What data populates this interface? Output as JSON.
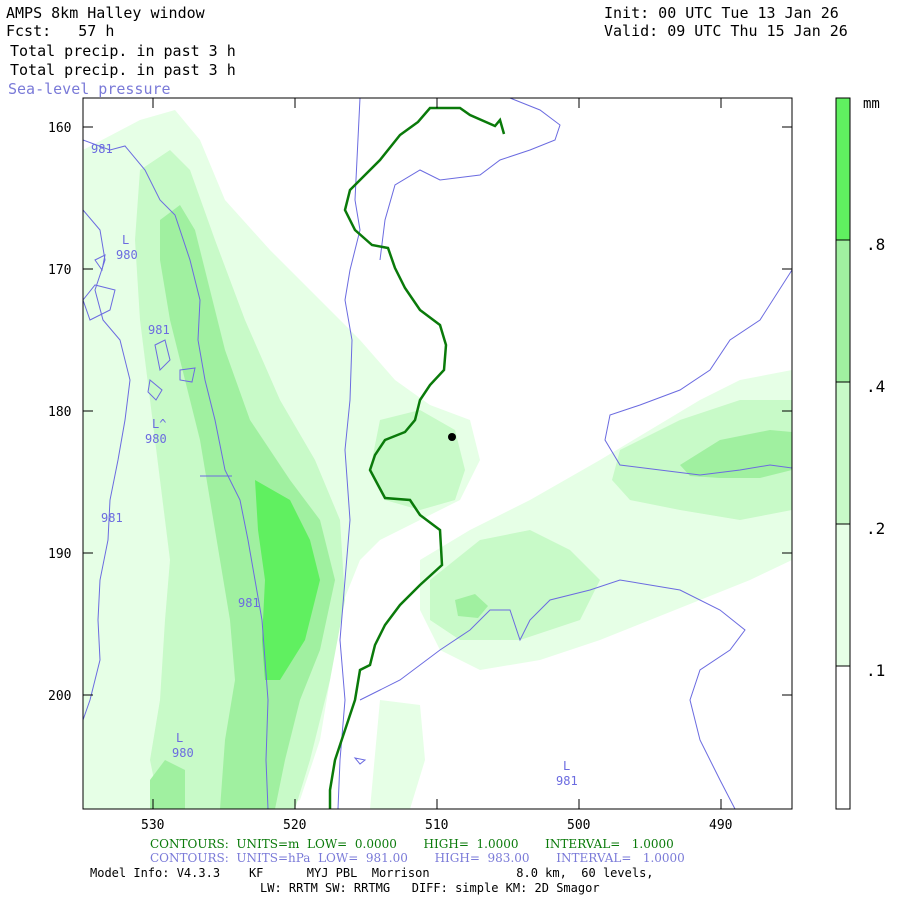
{
  "header": {
    "title": "AMPS 8km Halley window",
    "fcst": "Fcst:   57 h",
    "init": "Init: 00 UTC Tue 13 Jan 26",
    "valid": "Valid: 09 UTC Thu 15 Jan 26",
    "field1": "Total precip. in past 3 h",
    "field2": "Total precip. in past 3 h",
    "field3": "Sea-level pressure"
  },
  "axes": {
    "y_ticks": [
      "160",
      "170",
      "180",
      "190",
      "200"
    ],
    "x_ticks": [
      "530",
      "520",
      "510",
      "500",
      "490"
    ]
  },
  "colorbar": {
    "unit": "mm",
    "labels": [
      ".8",
      ".4",
      ".2",
      ".1"
    ],
    "colors": [
      "#ffffff",
      "#e6ffe6",
      "#c8fac8",
      "#a0f0a0",
      "#60f060"
    ]
  },
  "pressure_labels": [
    {
      "id": "p1",
      "lines": [
        "981"
      ]
    },
    {
      "id": "p2",
      "lines": [
        "L",
        "980"
      ]
    },
    {
      "id": "p3",
      "lines": [
        "981"
      ]
    },
    {
      "id": "p4",
      "lines": [
        "L^",
        "980"
      ]
    },
    {
      "id": "p5",
      "lines": [
        "981"
      ]
    },
    {
      "id": "p6",
      "lines": [
        "981"
      ]
    },
    {
      "id": "p7",
      "lines": [
        "L",
        "980"
      ]
    },
    {
      "id": "p8",
      "lines": [
        "L",
        "981"
      ]
    }
  ],
  "footer": {
    "contours_green": "CONTOURS:  UNITS=m  LOW=  0.0000       HIGH=  1.0000       INTERVAL=   1.0000",
    "contours_blue": "CONTOURS:  UNITS=hPa  LOW=  981.00       HIGH=  983.00       INTERVAL=   1.0000",
    "model_info": "Model Info: V4.3.3    KF      MYJ PBL  Morrison            8.0 km,  60 levels,",
    "model_info2": "LW: RRTM SW: RRTMG   DIFF: simple KM: 2D Smagor"
  },
  "colors": {
    "land_contour": "#0a7a0a",
    "pressure_contour": "#6b6be0",
    "shade1": "#e6ffe6",
    "shade2": "#c8fac8",
    "shade3": "#a0f0a0",
    "shade4": "#60f060"
  }
}
